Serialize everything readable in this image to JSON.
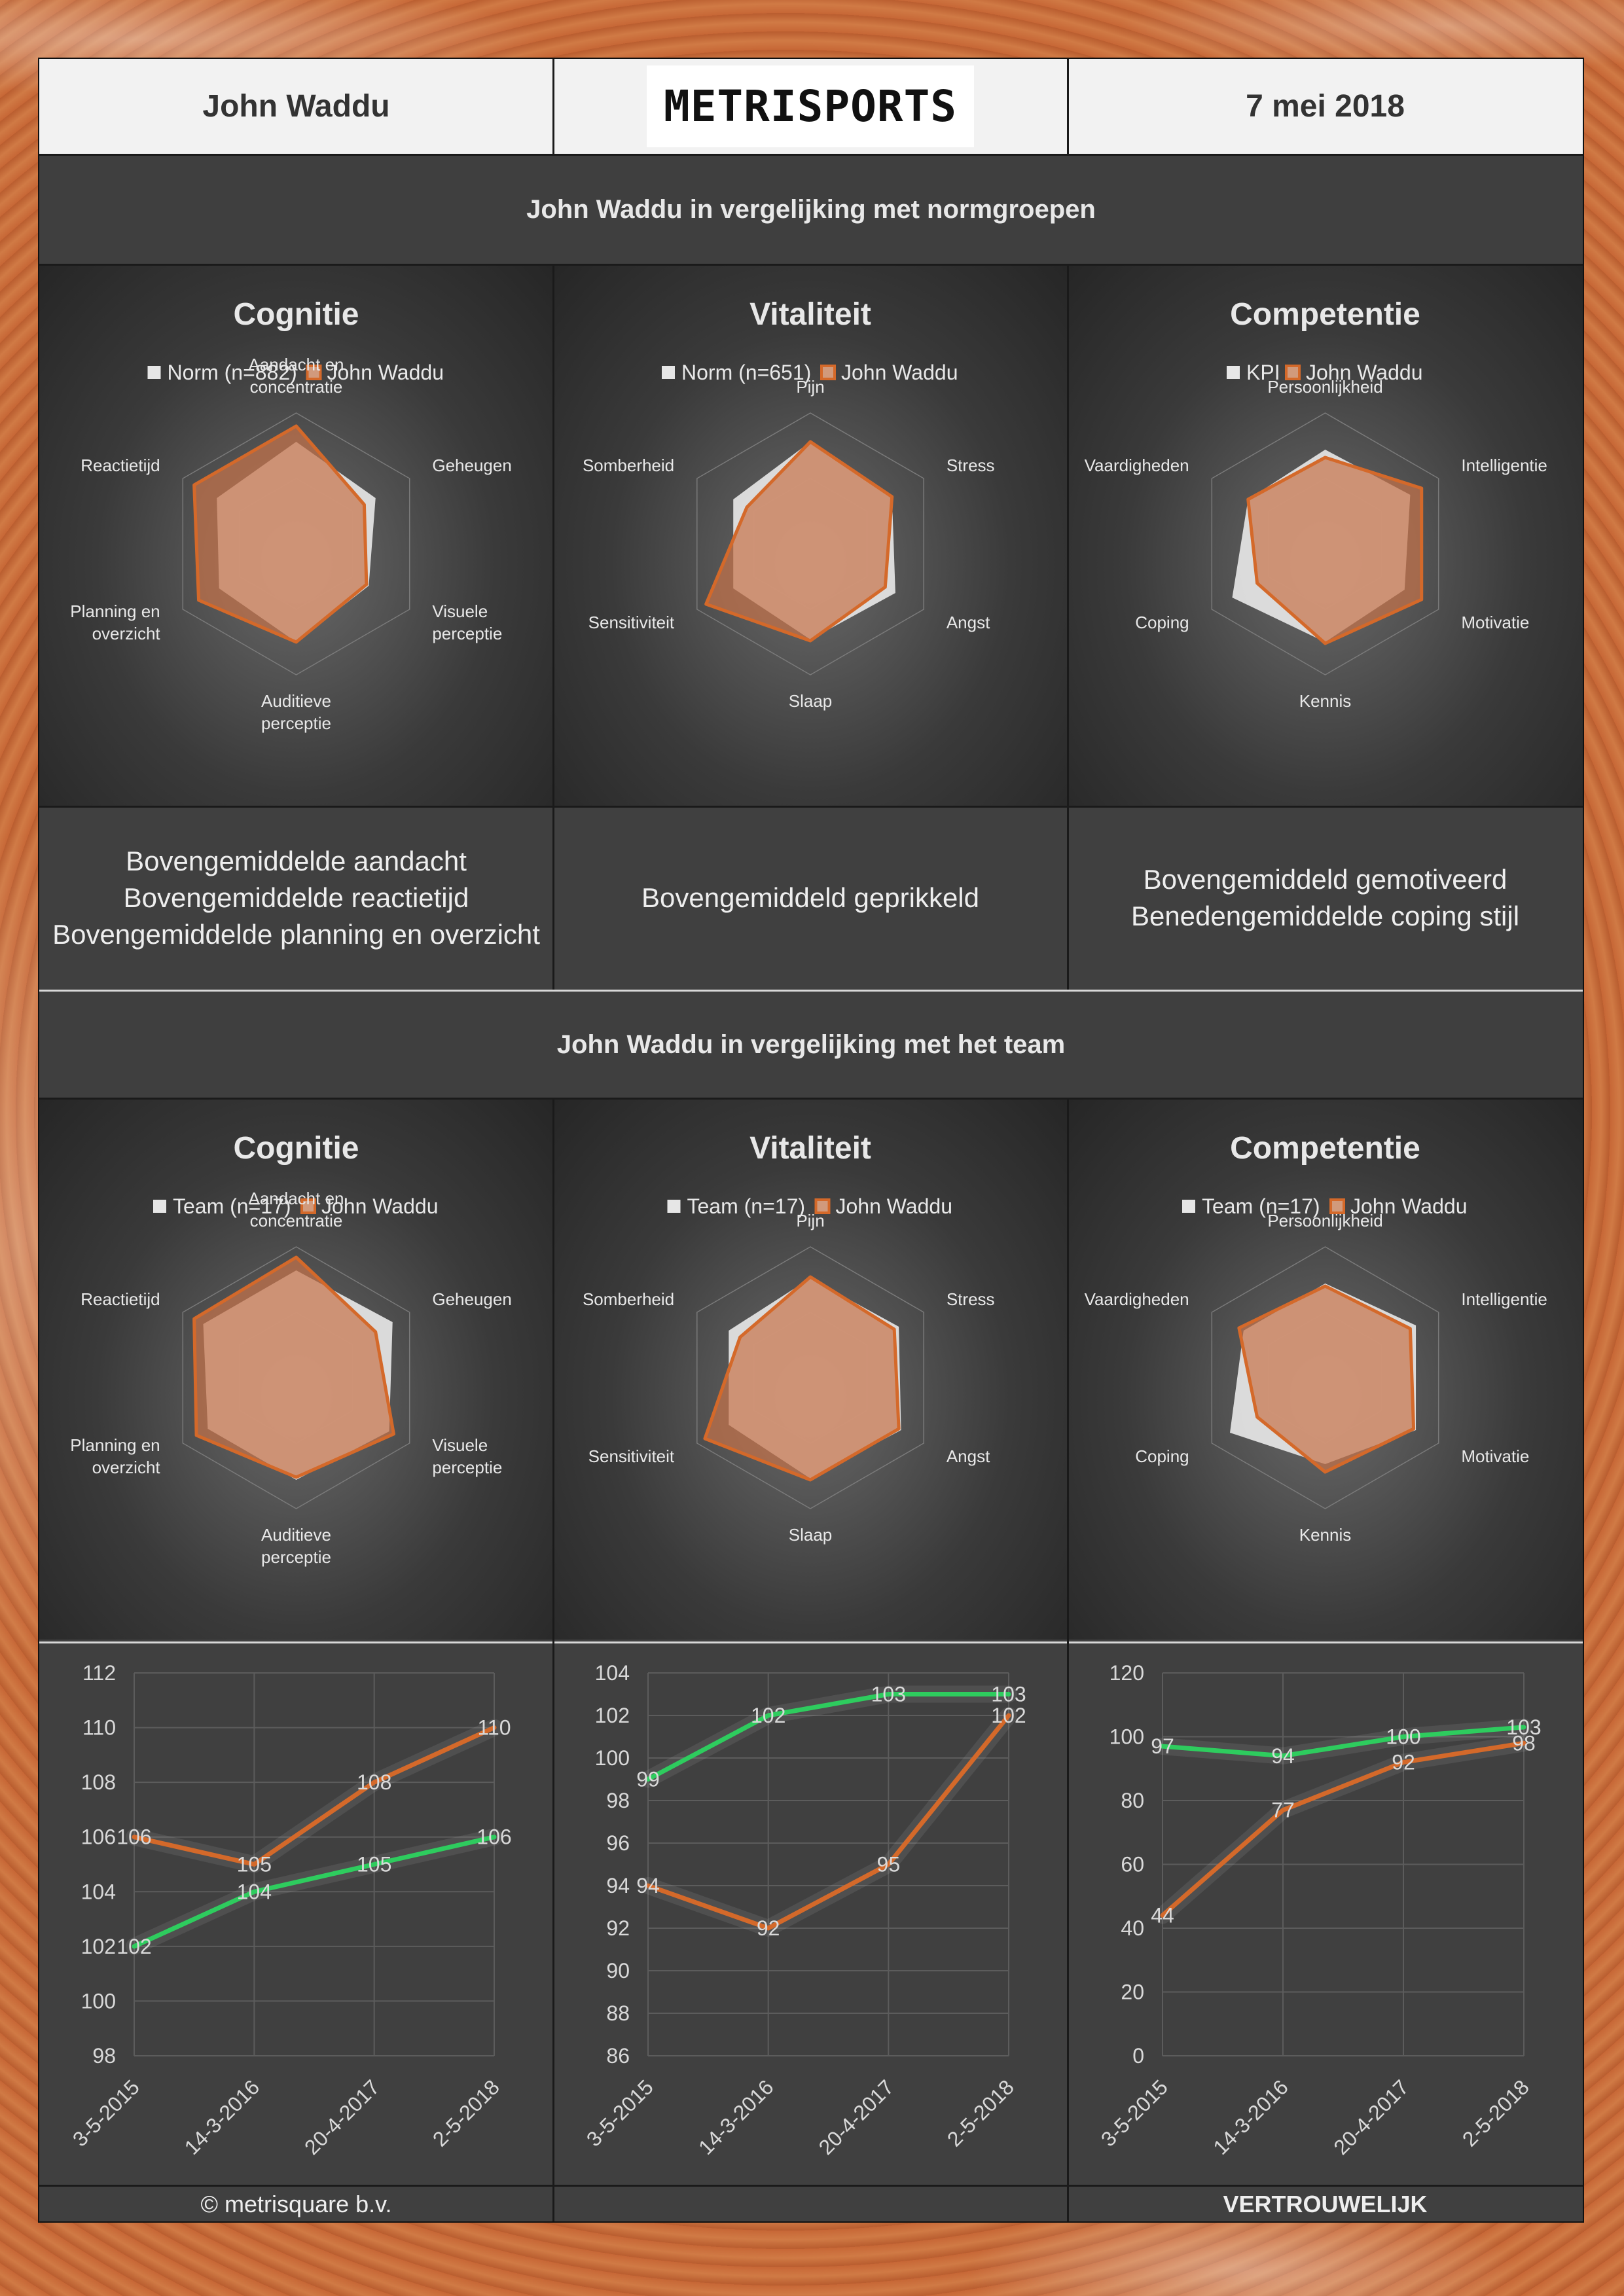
{
  "header": {
    "name": "John Waddu",
    "logo_text": "METRISPORTS",
    "date": "7 mei 2018"
  },
  "sections": {
    "norm_title": "John Waddu in vergelijking met normgroepen",
    "team_title": "John Waddu in vergelijking met het team"
  },
  "summaries": {
    "cognitie": [
      "Bovengemiddelde aandacht",
      "Bovengemiddelde reactietijd",
      "Bovengemiddelde planning en overzicht"
    ],
    "vitaliteit": [
      "Bovengemiddeld geprikkeld"
    ],
    "competentie": [
      "Bovengemiddeld gemotiveerd",
      "Benedengemiddelde coping stijl"
    ]
  },
  "footer": {
    "left": "© metrisquare b.v.",
    "center": "",
    "right": "VERTROUWELIJK"
  },
  "colors": {
    "reference_fill": "#e6e6e6",
    "player_fill": "#d19a7c",
    "player_line": "#d4692a",
    "trend_green": "#2ecc5e",
    "trend_orange": "#d4692a"
  },
  "chart_data": [
    {
      "type": "radar",
      "id": "norm-cognitie",
      "title": "Cognitie",
      "legend": [
        "Norm (n=882)",
        "John Waddu"
      ],
      "axes": [
        [
          "Aandacht en",
          "concentratie"
        ],
        [
          "Geheugen"
        ],
        [
          "Visuele",
          "perceptie"
        ],
        [
          "Auditieve",
          "perceptie"
        ],
        [
          "Planning en",
          "overzicht"
        ],
        [
          "Reactietijd"
        ]
      ],
      "series": [
        {
          "name": "Norm (n=882)",
          "values": [
            0.78,
            0.7,
            0.64,
            0.75,
            0.68,
            0.7
          ]
        },
        {
          "name": "John Waddu",
          "values": [
            0.9,
            0.6,
            0.62,
            0.75,
            0.86,
            0.9
          ]
        }
      ]
    },
    {
      "type": "radar",
      "id": "norm-vitaliteit",
      "title": "Vitaliteit",
      "legend": [
        "Norm (n=651)",
        "John Waddu"
      ],
      "axes": [
        [
          "Pijn"
        ],
        [
          "Stress"
        ],
        [
          "Angst"
        ],
        [
          "Slaap"
        ],
        [
          "Sensitiviteit"
        ],
        [
          "Somberheid"
        ]
      ],
      "series": [
        {
          "name": "Norm (n=651)",
          "values": [
            0.78,
            0.72,
            0.75,
            0.73,
            0.68,
            0.68
          ]
        },
        {
          "name": "John Waddu",
          "values": [
            0.78,
            0.72,
            0.66,
            0.74,
            0.92,
            0.56
          ]
        }
      ]
    },
    {
      "type": "radar",
      "id": "norm-competentie",
      "title": "Competentie",
      "legend": [
        "KPI",
        "John Waddu"
      ],
      "axes": [
        [
          "Persoonlijkheid"
        ],
        [
          "Intelligentie"
        ],
        [
          "Motivatie"
        ],
        [
          "Kennis"
        ],
        [
          "Coping"
        ],
        [
          "Vaardigheden"
        ]
      ],
      "series": [
        {
          "name": "KPI",
          "values": [
            0.72,
            0.75,
            0.7,
            0.75,
            0.82,
            0.68
          ]
        },
        {
          "name": "John Waddu",
          "values": [
            0.66,
            0.85,
            0.85,
            0.76,
            0.6,
            0.68
          ]
        }
      ]
    },
    {
      "type": "radar",
      "id": "team-cognitie",
      "title": "Cognitie",
      "legend": [
        "Team (n=17)",
        "John Waddu"
      ],
      "axes": [
        [
          "Aandacht en",
          "concentratie"
        ],
        [
          "Geheugen"
        ],
        [
          "Visuele",
          "perceptie"
        ],
        [
          "Auditieve",
          "perceptie"
        ],
        [
          "Planning en",
          "overzicht"
        ],
        [
          "Reactietijd"
        ]
      ],
      "series": [
        {
          "name": "Team (n=17)",
          "values": [
            0.82,
            0.85,
            0.82,
            0.78,
            0.78,
            0.82
          ]
        },
        {
          "name": "John Waddu",
          "values": [
            0.92,
            0.7,
            0.86,
            0.76,
            0.88,
            0.9
          ]
        }
      ]
    },
    {
      "type": "radar",
      "id": "team-vitaliteit",
      "title": "Vitaliteit",
      "legend": [
        "Team (n=17)",
        "John Waddu"
      ],
      "axes": [
        [
          "Pijn"
        ],
        [
          "Stress"
        ],
        [
          "Angst"
        ],
        [
          "Slaap"
        ],
        [
          "Sensitiviteit"
        ],
        [
          "Somberheid"
        ]
      ],
      "series": [
        {
          "name": "Team (n=17)",
          "values": [
            0.76,
            0.78,
            0.8,
            0.77,
            0.72,
            0.72
          ]
        },
        {
          "name": "John Waddu",
          "values": [
            0.77,
            0.74,
            0.78,
            0.78,
            0.93,
            0.62
          ]
        }
      ]
    },
    {
      "type": "radar",
      "id": "team-competentie",
      "title": "Competentie",
      "legend": [
        "Team (n=17)",
        "John Waddu"
      ],
      "axes": [
        [
          "Persoonlijkheid"
        ],
        [
          "Intelligentie"
        ],
        [
          "Motivatie"
        ],
        [
          "Kennis"
        ],
        [
          "Coping"
        ],
        [
          "Vaardigheden"
        ]
      ],
      "series": [
        {
          "name": "Team (n=17)",
          "values": [
            0.72,
            0.8,
            0.8,
            0.66,
            0.84,
            0.72
          ]
        },
        {
          "name": "John Waddu",
          "values": [
            0.7,
            0.75,
            0.78,
            0.72,
            0.6,
            0.76
          ]
        }
      ]
    },
    {
      "type": "line",
      "id": "trend-cognitie",
      "categories": [
        "3-5-2015",
        "14-3-2016",
        "20-4-2017",
        "2-5-2018"
      ],
      "ylim": [
        98,
        112
      ],
      "ystep": 2,
      "grid": true,
      "series": [
        {
          "color": "green",
          "values": [
            102,
            104,
            105,
            106
          ]
        },
        {
          "color": "orange",
          "values": [
            106,
            105,
            108,
            110
          ]
        }
      ]
    },
    {
      "type": "line",
      "id": "trend-vitaliteit",
      "categories": [
        "3-5-2015",
        "14-3-2016",
        "20-4-2017",
        "2-5-2018"
      ],
      "ylim": [
        86,
        104
      ],
      "ystep": 2,
      "grid": true,
      "series": [
        {
          "color": "green",
          "values": [
            99,
            102,
            103,
            103
          ]
        },
        {
          "color": "orange",
          "values": [
            94,
            92,
            95,
            102
          ]
        }
      ]
    },
    {
      "type": "line",
      "id": "trend-competentie",
      "categories": [
        "3-5-2015",
        "14-3-2016",
        "20-4-2017",
        "2-5-2018"
      ],
      "ylim": [
        0,
        120
      ],
      "ystep": 20,
      "grid": true,
      "series": [
        {
          "color": "green",
          "values": [
            97,
            94,
            100,
            103
          ]
        },
        {
          "color": "orange",
          "values": [
            44,
            77,
            92,
            98
          ]
        }
      ]
    }
  ]
}
